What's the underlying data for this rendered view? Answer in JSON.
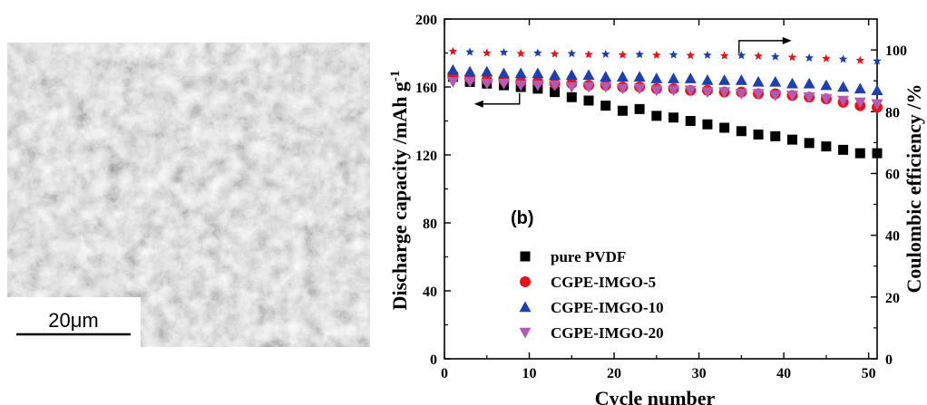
{
  "sem_image": {
    "scale_bar_label": "20μm"
  },
  "chart_data": {
    "type": "scatter",
    "panel_label": "(b)",
    "xlabel": "Cycle number",
    "ylabel": "Discharge capacity /mAh g-1",
    "ylabel_main": "Discharge capacity /mAh g",
    "ylabel_sup": "-1",
    "y2label": "Coulombic efficiency /%",
    "xlim": [
      0,
      51
    ],
    "ylim": [
      0,
      200
    ],
    "y2lim": [
      0,
      110
    ],
    "xticks": [
      0,
      10,
      20,
      30,
      40,
      50
    ],
    "yticks": [
      0,
      40,
      80,
      120,
      160,
      200
    ],
    "y2ticks": [
      0,
      20,
      40,
      60,
      80,
      100
    ],
    "grid": false,
    "legend_position": "bottom-left",
    "series": [
      {
        "name": "pure PVDF",
        "marker": "square",
        "color": "#000000",
        "x": [
          1,
          3,
          5,
          7,
          9,
          11,
          13,
          15,
          17,
          19,
          21,
          23,
          25,
          27,
          29,
          31,
          33,
          35,
          37,
          39,
          41,
          43,
          45,
          47,
          49,
          51
        ],
        "values": [
          166,
          163,
          162,
          161,
          160,
          159,
          157,
          154,
          152,
          149,
          146,
          147,
          143,
          142,
          140,
          138,
          136,
          134,
          132,
          131,
          129,
          127,
          125,
          123,
          121,
          121
        ]
      },
      {
        "name": "CGPE-IMGO-5",
        "marker": "circle",
        "color": "#e8141b",
        "x": [
          1,
          3,
          5,
          7,
          9,
          11,
          13,
          15,
          17,
          19,
          21,
          23,
          25,
          27,
          29,
          31,
          33,
          35,
          37,
          39,
          41,
          43,
          45,
          47,
          49,
          51
        ],
        "values": [
          166,
          165,
          164,
          164,
          163,
          163,
          162,
          162,
          161,
          161,
          160,
          160,
          159,
          159,
          158,
          158,
          157,
          157,
          156,
          156,
          155,
          154,
          153,
          151,
          149,
          148
        ]
      },
      {
        "name": "CGPE-IMGO-10",
        "marker": "triangle-up",
        "color": "#1d3fb0",
        "x": [
          1,
          3,
          5,
          7,
          9,
          11,
          13,
          15,
          17,
          19,
          21,
          23,
          25,
          27,
          29,
          31,
          33,
          35,
          37,
          39,
          41,
          43,
          45,
          47,
          49,
          51
        ],
        "values": [
          170,
          169,
          169,
          168,
          168,
          168,
          167,
          167,
          167,
          166,
          166,
          166,
          165,
          165,
          165,
          164,
          164,
          164,
          163,
          163,
          162,
          162,
          161,
          160,
          159,
          158
        ]
      },
      {
        "name": "CGPE-IMGO-20",
        "marker": "triangle-down",
        "color": "#b45ab4",
        "x": [
          1,
          3,
          5,
          7,
          9,
          11,
          13,
          15,
          17,
          19,
          21,
          23,
          25,
          27,
          29,
          31,
          33,
          35,
          37,
          39,
          41,
          43,
          45,
          47,
          49,
          51
        ],
        "values": [
          163,
          163,
          162,
          162,
          161,
          161,
          161,
          160,
          160,
          160,
          159,
          159,
          158,
          158,
          158,
          157,
          157,
          156,
          156,
          155,
          155,
          154,
          153,
          152,
          151,
          150
        ]
      }
    ],
    "efficiency_series": {
      "axis": "right",
      "marker": "star",
      "colors": [
        "#e8141b",
        "#1d3fb0"
      ],
      "x": [
        1,
        3,
        5,
        7,
        9,
        11,
        13,
        15,
        17,
        19,
        21,
        23,
        25,
        27,
        29,
        31,
        33,
        35,
        37,
        39,
        41,
        43,
        45,
        47,
        49,
        51
      ],
      "values": [
        99.5,
        99.3,
        99.0,
        99.2,
        98.8,
        99.0,
        98.7,
        98.8,
        98.5,
        98.6,
        98.4,
        98.5,
        98.3,
        98.4,
        98.2,
        98.3,
        98.1,
        98.2,
        98.0,
        97.8,
        97.6,
        97.4,
        97.2,
        97.0,
        96.6,
        96.4
      ]
    },
    "annotations": [
      {
        "type": "arrow",
        "direction": "right",
        "target_axis": "right",
        "x_data": 39,
        "y2_data": 103
      },
      {
        "type": "arrow",
        "direction": "left",
        "target_axis": "left",
        "x_data": 5,
        "y_data": 150
      }
    ]
  }
}
